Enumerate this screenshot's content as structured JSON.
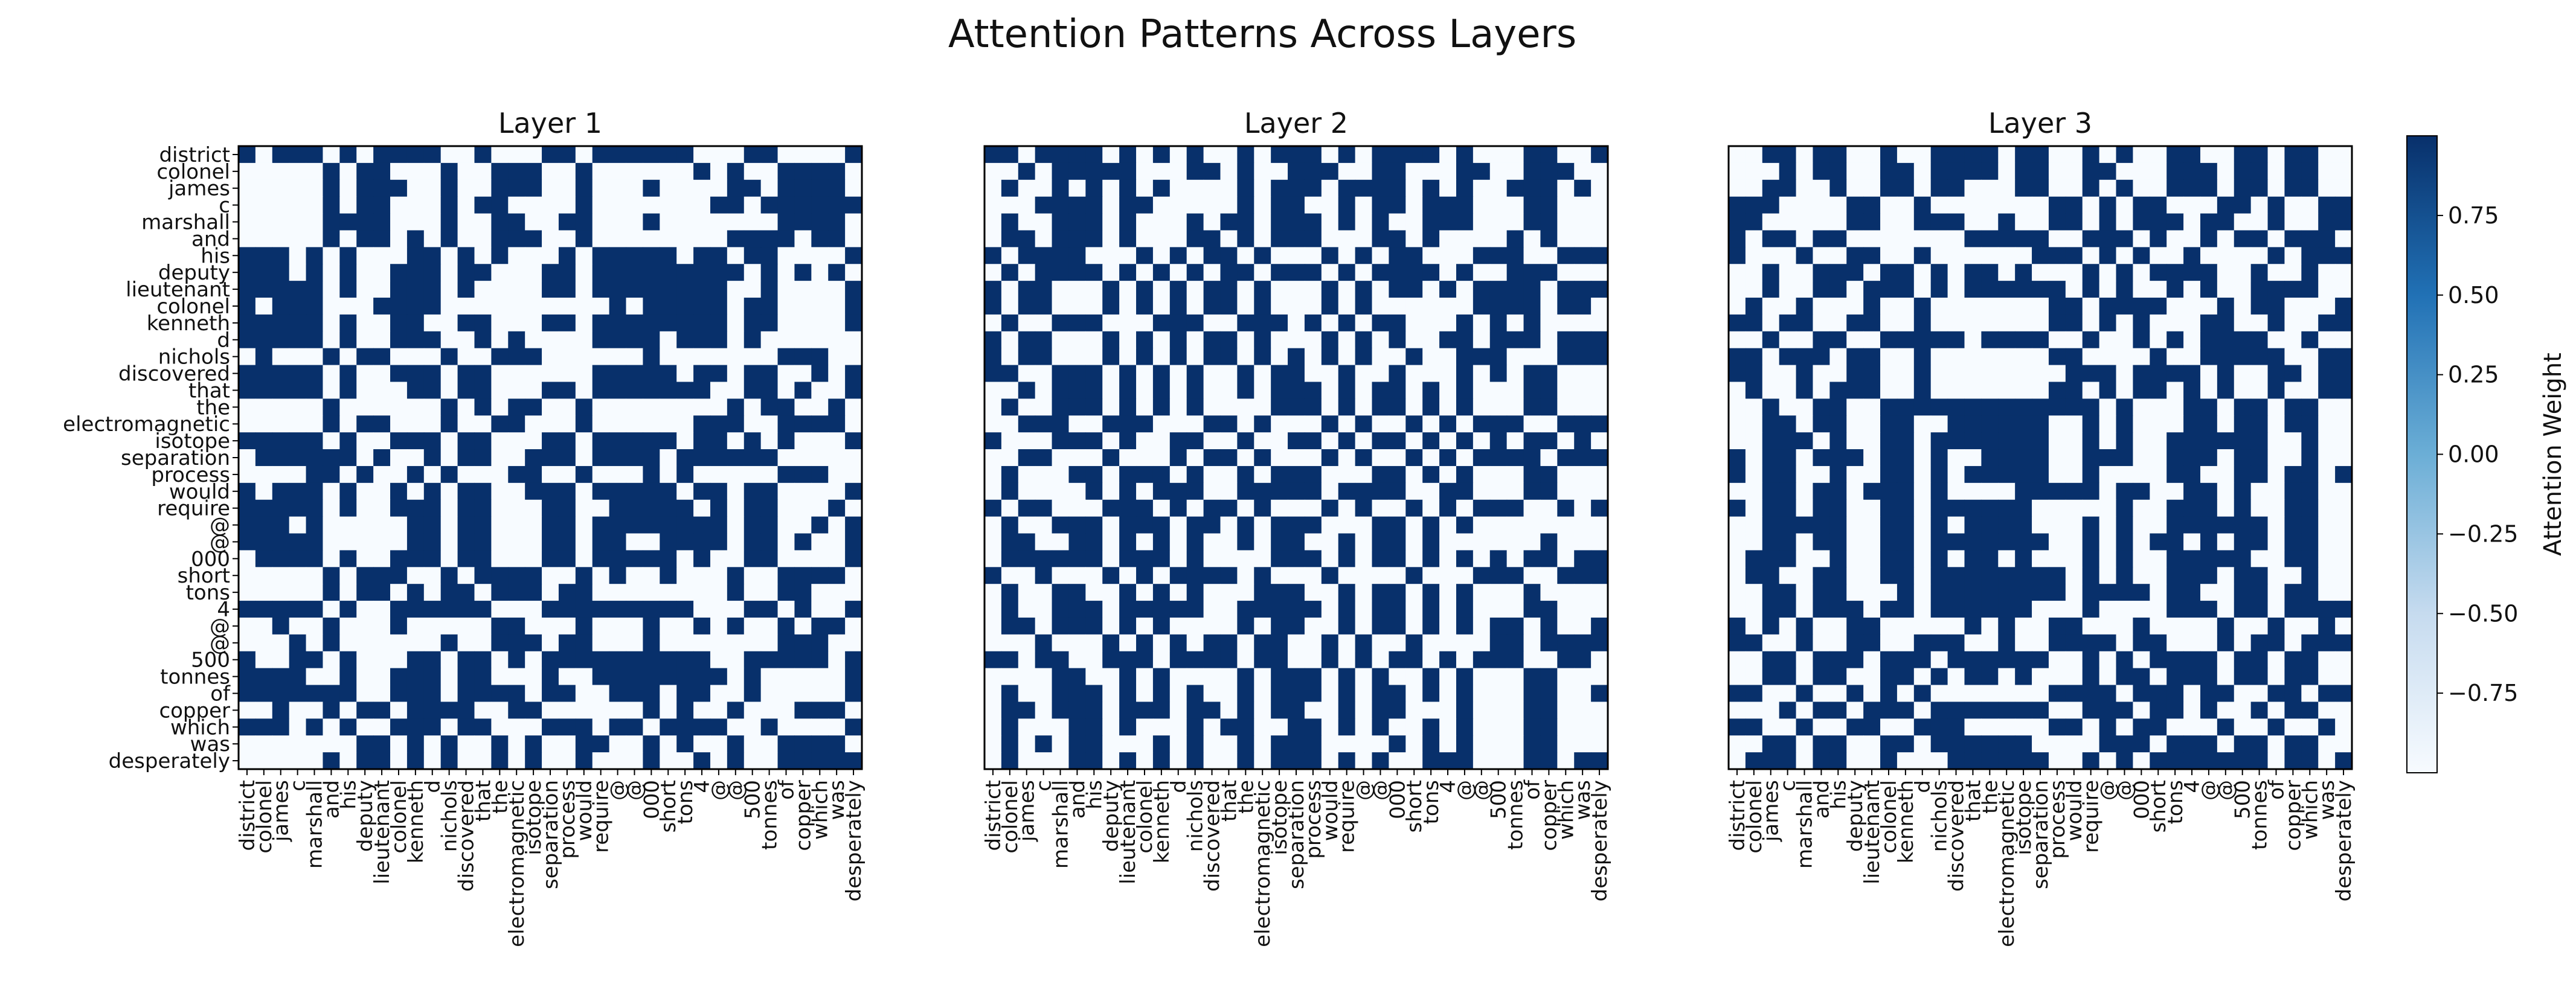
{
  "figure": {
    "title": "Attention Patterns Across Layers"
  },
  "colorbar": {
    "label": "Attention Weight",
    "ticks": [
      0.75,
      0.5,
      0.25,
      0.0,
      -0.25,
      -0.5,
      -0.75
    ],
    "tick_labels": [
      "0.75",
      "0.50",
      "0.25",
      "0.00",
      "−0.25",
      "−0.50",
      "−0.75"
    ],
    "range": [
      -1.0,
      1.0
    ],
    "colormap": "Blues",
    "colors": {
      "low": "#f7fbff",
      "high": "#08306b"
    }
  },
  "chart_data": [
    {
      "type": "heatmap",
      "title": "Layer 1",
      "x_tokens": [
        "district",
        "colonel",
        "james",
        "c",
        "marshall",
        "and",
        "his",
        "deputy",
        "lieutenant",
        "colonel",
        "kenneth",
        "d",
        "nichols",
        "discovered",
        "that",
        "the",
        "electromagnetic",
        "isotope",
        "separation",
        "process",
        "would",
        "require",
        "@",
        "@",
        "000",
        "short",
        "tons",
        "4",
        "@",
        "@",
        "500",
        "tonnes",
        "of",
        "copper",
        "which",
        "was",
        "desperately"
      ],
      "y_tokens": [
        "district",
        "colonel",
        "james",
        "c",
        "marshall",
        "and",
        "his",
        "deputy",
        "lieutenant",
        "colonel",
        "kenneth",
        "d",
        "nichols",
        "discovered",
        "that",
        "the",
        "electromagnetic",
        "isotope",
        "separation",
        "process",
        "would",
        "require",
        "@",
        "@",
        "000",
        "short",
        "tons",
        "4",
        "@",
        "@",
        "500",
        "tonnes",
        "of",
        "copper",
        "which",
        "was",
        "desperately"
      ],
      "seed": 101,
      "value_range": [
        -1,
        1
      ]
    },
    {
      "type": "heatmap",
      "title": "Layer 2",
      "x_tokens": [
        "district",
        "colonel",
        "james",
        "c",
        "marshall",
        "and",
        "his",
        "deputy",
        "lieutenant",
        "colonel",
        "kenneth",
        "d",
        "nichols",
        "discovered",
        "that",
        "the",
        "electromagnetic",
        "isotope",
        "separation",
        "process",
        "would",
        "require",
        "@",
        "@",
        "000",
        "short",
        "tons",
        "4",
        "@",
        "@",
        "500",
        "tonnes",
        "of",
        "copper",
        "which",
        "was",
        "desperately"
      ],
      "y_tokens": [],
      "seed": 202,
      "value_range": [
        -1,
        1
      ]
    },
    {
      "type": "heatmap",
      "title": "Layer 3",
      "x_tokens": [
        "district",
        "colonel",
        "james",
        "c",
        "marshall",
        "and",
        "his",
        "deputy",
        "lieutenant",
        "colonel",
        "kenneth",
        "d",
        "nichols",
        "discovered",
        "that",
        "the",
        "electromagnetic",
        "isotope",
        "separation",
        "process",
        "would",
        "require",
        "@",
        "@",
        "000",
        "short",
        "tons",
        "4",
        "@",
        "@",
        "500",
        "tonnes",
        "of",
        "copper",
        "which",
        "was",
        "desperately"
      ],
      "y_tokens": [],
      "seed": 303,
      "value_range": [
        -1,
        1
      ]
    }
  ]
}
